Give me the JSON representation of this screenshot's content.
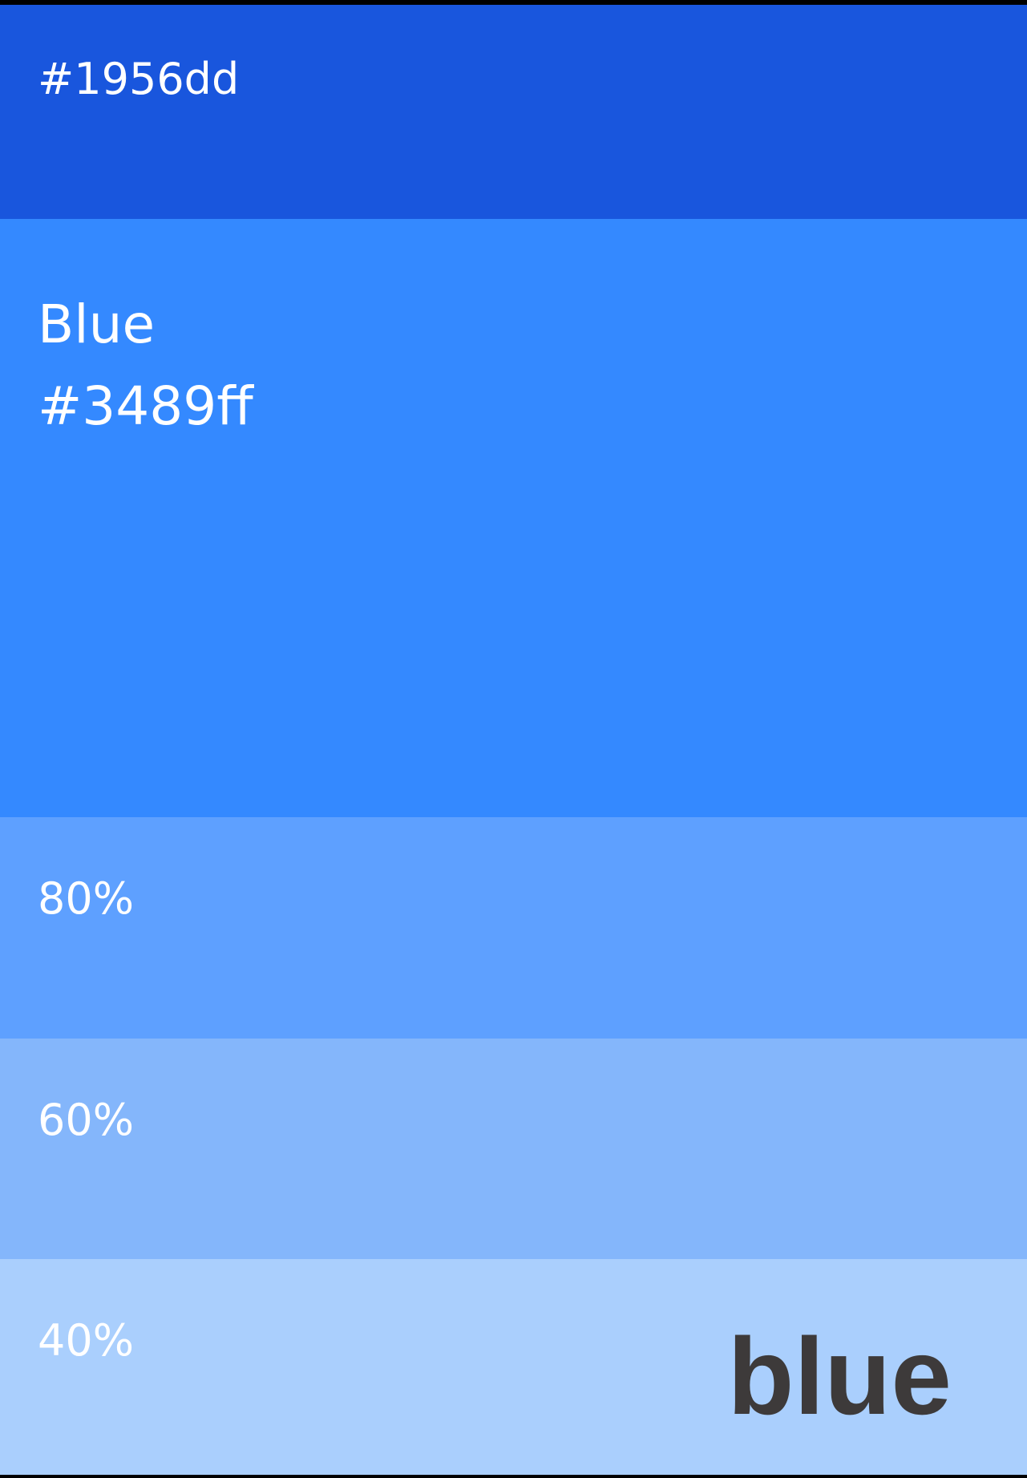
{
  "swatches": [
    {
      "label": "#1956dd",
      "color": "#1956dd"
    },
    {
      "name": "Blue",
      "label": "#3489ff",
      "color": "#3489ff"
    },
    {
      "label": "80%",
      "color": "#5ea0ff"
    },
    {
      "label": "60%",
      "color": "#84b6fb"
    },
    {
      "label": "40%",
      "color": "#aacffd"
    }
  ],
  "brand": "blue"
}
